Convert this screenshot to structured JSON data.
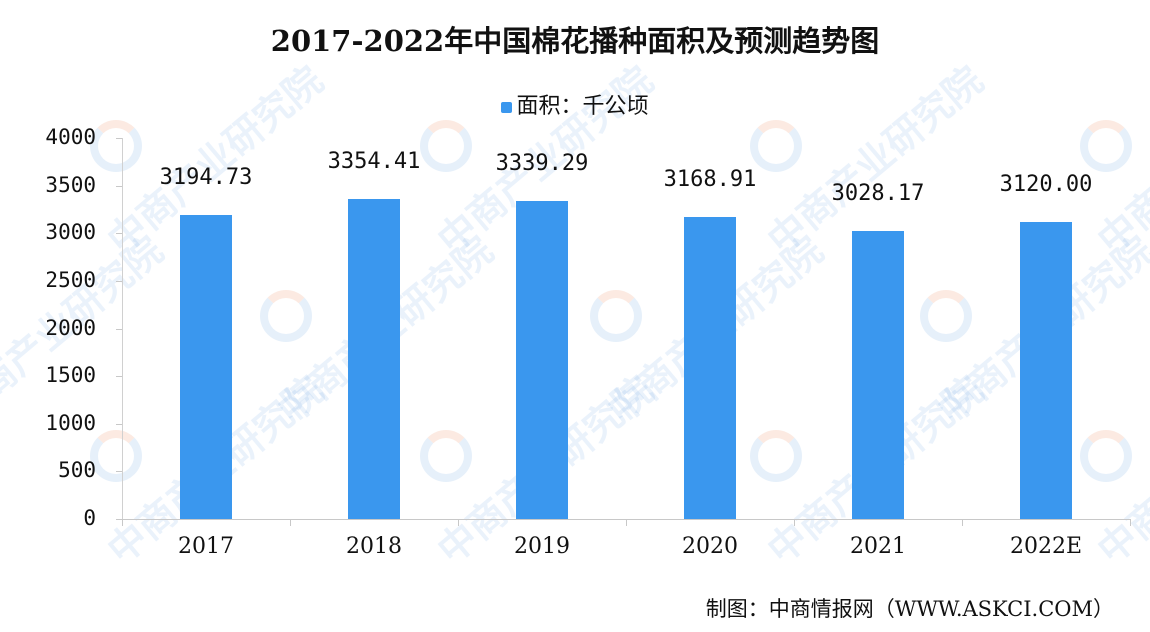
{
  "chart": {
    "title": "2017-2022年中国棉花播种面积及预测趋势图",
    "legend_label": "面积：千公顷",
    "credit": "制图：中商情报网（WWW.ASKCI.COM）",
    "watermark": "中商产业研究院",
    "bar_color": "#3a97ee",
    "y_ticks": [
      "0",
      "500",
      "1000",
      "1500",
      "2000",
      "2500",
      "3000",
      "3500",
      "4000"
    ],
    "categories": [
      "2017",
      "2018",
      "2019",
      "2020",
      "2021",
      "2022E"
    ],
    "value_labels": [
      "3194.73",
      "3354.41",
      "3339.29",
      "3168.91",
      "3028.17",
      "3120.00"
    ]
  },
  "chart_data": {
    "type": "bar",
    "title": "2017-2022年中国棉花播种面积及预测趋势图",
    "categories": [
      "2017",
      "2018",
      "2019",
      "2020",
      "2021",
      "2022E"
    ],
    "series": [
      {
        "name": "面积：千公顷",
        "values": [
          3194.73,
          3354.41,
          3339.29,
          3168.91,
          3028.17,
          3120.0
        ],
        "color": "#3a97ee"
      }
    ],
    "xlabel": "",
    "ylabel": "",
    "ylim": [
      0,
      4000
    ],
    "y_ticks": [
      0,
      500,
      1000,
      1500,
      2000,
      2500,
      3000,
      3500,
      4000
    ],
    "grid": false,
    "legend_position": "top",
    "data_labels": true,
    "source": "制图：中商情报网（WWW.ASKCI.COM）"
  }
}
